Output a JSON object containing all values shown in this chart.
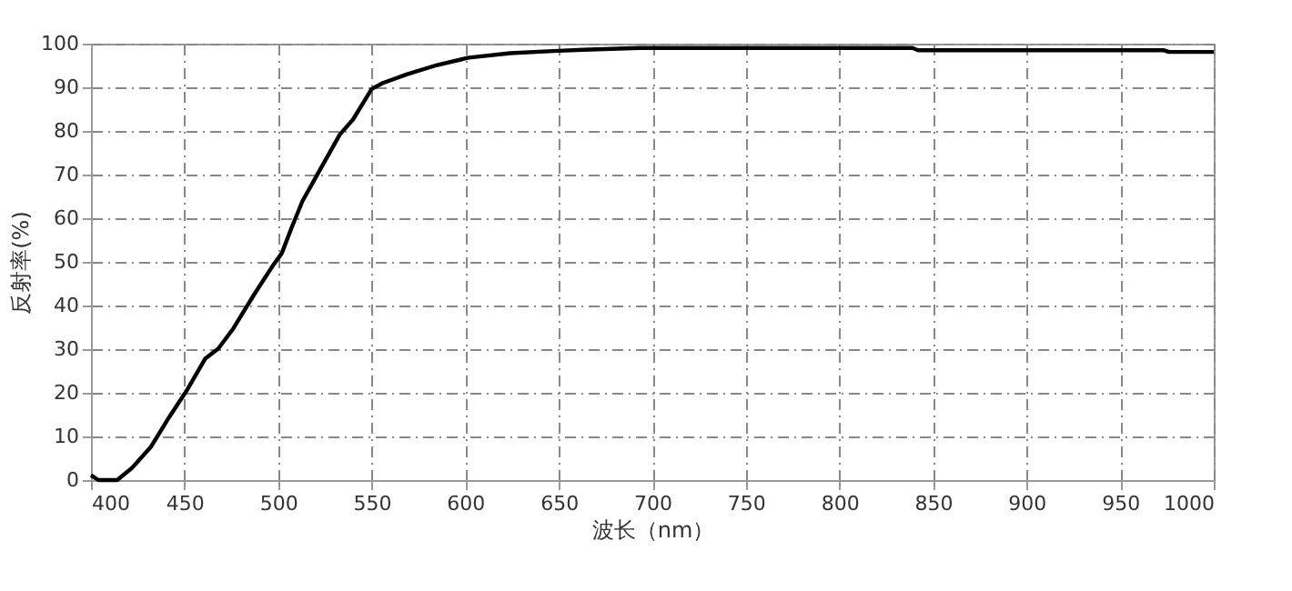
{
  "chart_data": {
    "type": "line",
    "xlabel": "波长（nm）",
    "ylabel": "反射率(%)",
    "x": [
      400,
      404,
      414,
      422,
      432,
      441,
      451,
      461,
      468,
      476,
      487,
      497,
      502,
      507,
      513,
      522,
      533,
      540,
      550,
      556,
      569,
      585,
      602,
      624,
      647,
      663,
      693,
      839,
      842,
      973,
      976,
      1000
    ],
    "series": [
      {
        "color": "#000000",
        "values": [
          1.1,
          0,
          0,
          2.8,
          7.6,
          13.9,
          20.4,
          27.8,
          30.1,
          34.7,
          42.4,
          49,
          52,
          57.6,
          63.9,
          70.8,
          79.2,
          82.6,
          89.6,
          91,
          93,
          95.1,
          96.8,
          97.8,
          98.3,
          98.6,
          99,
          99,
          98.5,
          98.5,
          98.1,
          98.1
        ]
      }
    ],
    "xlim": [
      400,
      1000
    ],
    "xticks": [
      400,
      450,
      500,
      550,
      600,
      650,
      700,
      750,
      800,
      850,
      900,
      950,
      1000
    ],
    "ylim": [
      0,
      100
    ],
    "yticks": [
      0,
      10,
      20,
      30,
      40,
      50,
      60,
      70,
      80,
      90,
      100
    ],
    "grid": true,
    "marker": "none",
    "line_style": "solid"
  }
}
